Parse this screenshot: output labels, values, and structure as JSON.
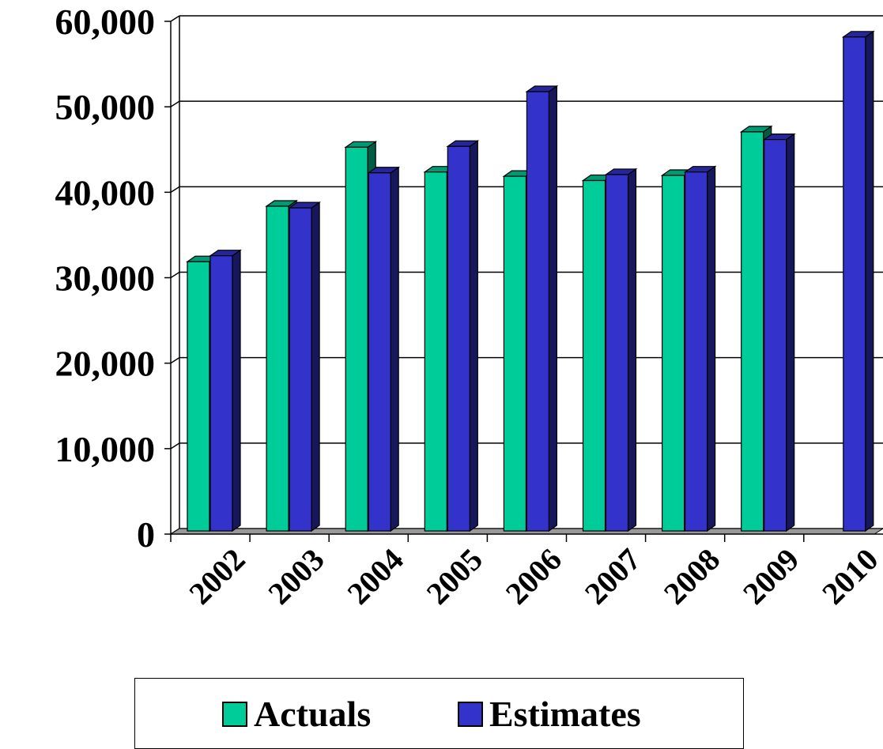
{
  "chart_data": {
    "type": "bar",
    "categories": [
      "2002",
      "2003",
      "2004",
      "2005",
      "2006",
      "2007",
      "2008",
      "2009",
      "2010"
    ],
    "series": [
      {
        "name": "Actuals",
        "color": "#00cc99",
        "values": [
          31500,
          38000,
          44900,
          42000,
          41500,
          41000,
          41600,
          46700,
          null
        ]
      },
      {
        "name": "Estimates",
        "color": "#3333cc",
        "values": [
          32200,
          37800,
          41900,
          45000,
          51400,
          41700,
          42000,
          45800,
          57800
        ]
      }
    ],
    "yticks": [
      "0",
      "10,000",
      "20,000",
      "30,000",
      "40,000",
      "50,000",
      "60,000"
    ],
    "ylim": [
      0,
      60000
    ],
    "title": "",
    "xlabel": "",
    "ylabel": "",
    "grid": true,
    "legend_position": "bottom"
  },
  "legend": {
    "items": [
      {
        "label": "Actuals"
      },
      {
        "label": "Estimates"
      }
    ]
  }
}
